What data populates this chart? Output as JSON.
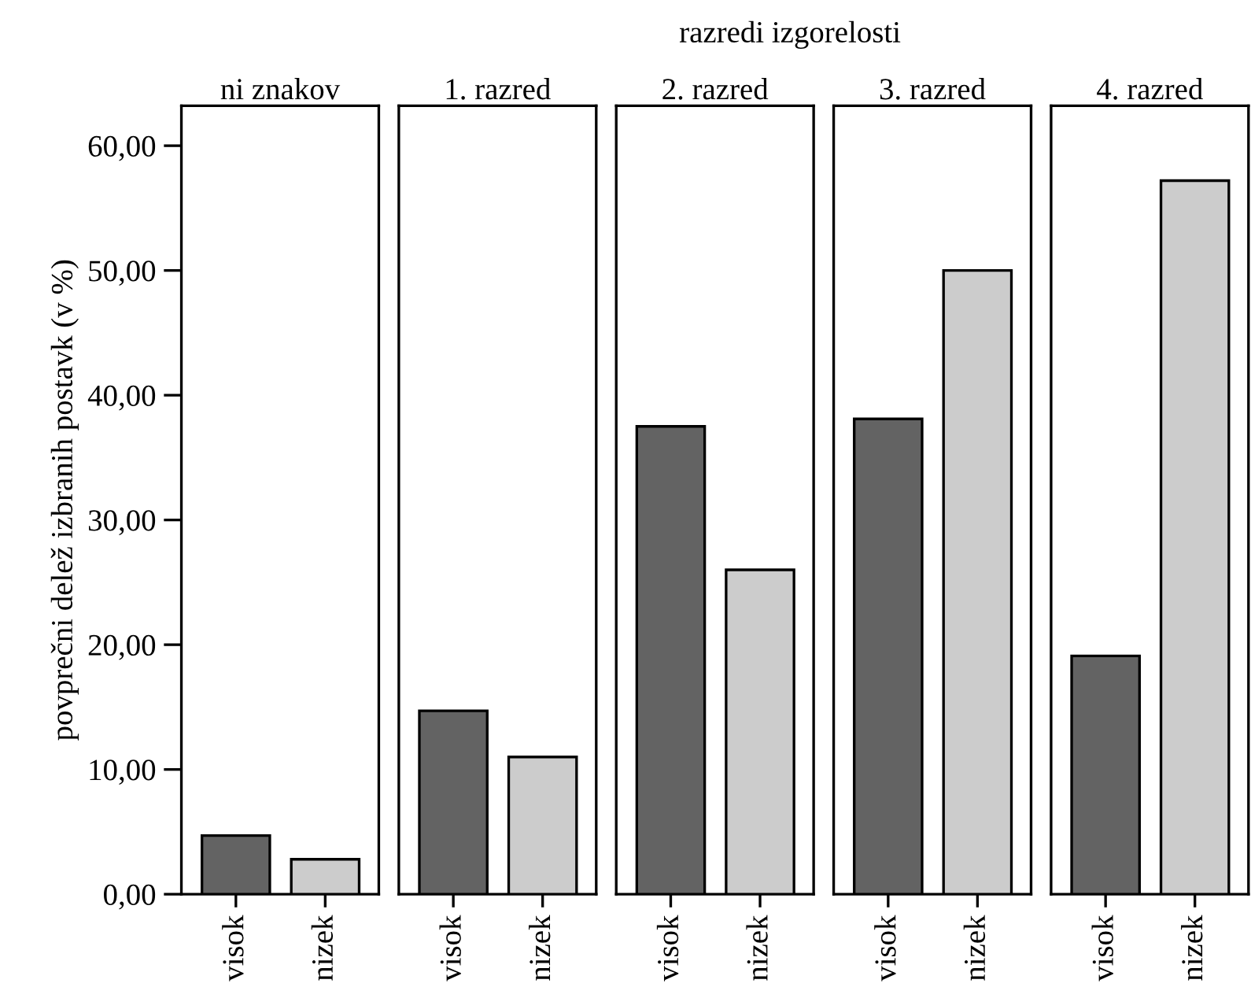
{
  "chart_data": [
    {
      "type": "bar",
      "title": "ni znakov",
      "ylabel": "povprečni delež izbranih postavk (v %)",
      "annotations": [
        "razredi izgorelosti"
      ],
      "categories": [
        "visok",
        "nizek"
      ],
      "values": [
        4.7,
        2.8
      ],
      "colors": [
        "#636363",
        "#cccccc"
      ],
      "ylim": [
        0,
        63.2
      ],
      "yticks": [
        {
          "value": 0,
          "label": "0,00"
        },
        {
          "value": 10,
          "label": "10,00"
        },
        {
          "value": 20,
          "label": "20,00"
        },
        {
          "value": 30,
          "label": "30,00"
        },
        {
          "value": 40,
          "label": "40,00"
        },
        {
          "value": 50,
          "label": "50,00"
        },
        {
          "value": 60,
          "label": "60,00"
        }
      ]
    },
    {
      "type": "bar",
      "title": "1. razred",
      "categories": [
        "visok",
        "nizek"
      ],
      "values": [
        14.7,
        11.0
      ],
      "colors": [
        "#636363",
        "#cccccc"
      ],
      "ylim": [
        0,
        63.2
      ],
      "tick_labels": "x"
    },
    {
      "type": "bar",
      "title": "2. razred",
      "categories": [
        "visok",
        "nizek"
      ],
      "values": [
        37.5,
        26.0
      ],
      "colors": [
        "#636363",
        "#cccccc"
      ],
      "ylim": [
        0,
        63.2
      ],
      "tick_labels": "x"
    },
    {
      "type": "bar",
      "title": "3. razred",
      "categories": [
        "visok",
        "nizek"
      ],
      "values": [
        38.1,
        50.0
      ],
      "colors": [
        "#636363",
        "#cccccc"
      ],
      "ylim": [
        0,
        63.2
      ],
      "tick_labels": "x"
    },
    {
      "type": "bar",
      "title": "4. razred",
      "categories": [
        "visok",
        "nizek"
      ],
      "values": [
        19.1,
        57.2
      ],
      "colors": [
        "#636363",
        "#cccccc"
      ],
      "ylim": [
        0,
        63.2
      ],
      "tick_labels": "x"
    }
  ]
}
